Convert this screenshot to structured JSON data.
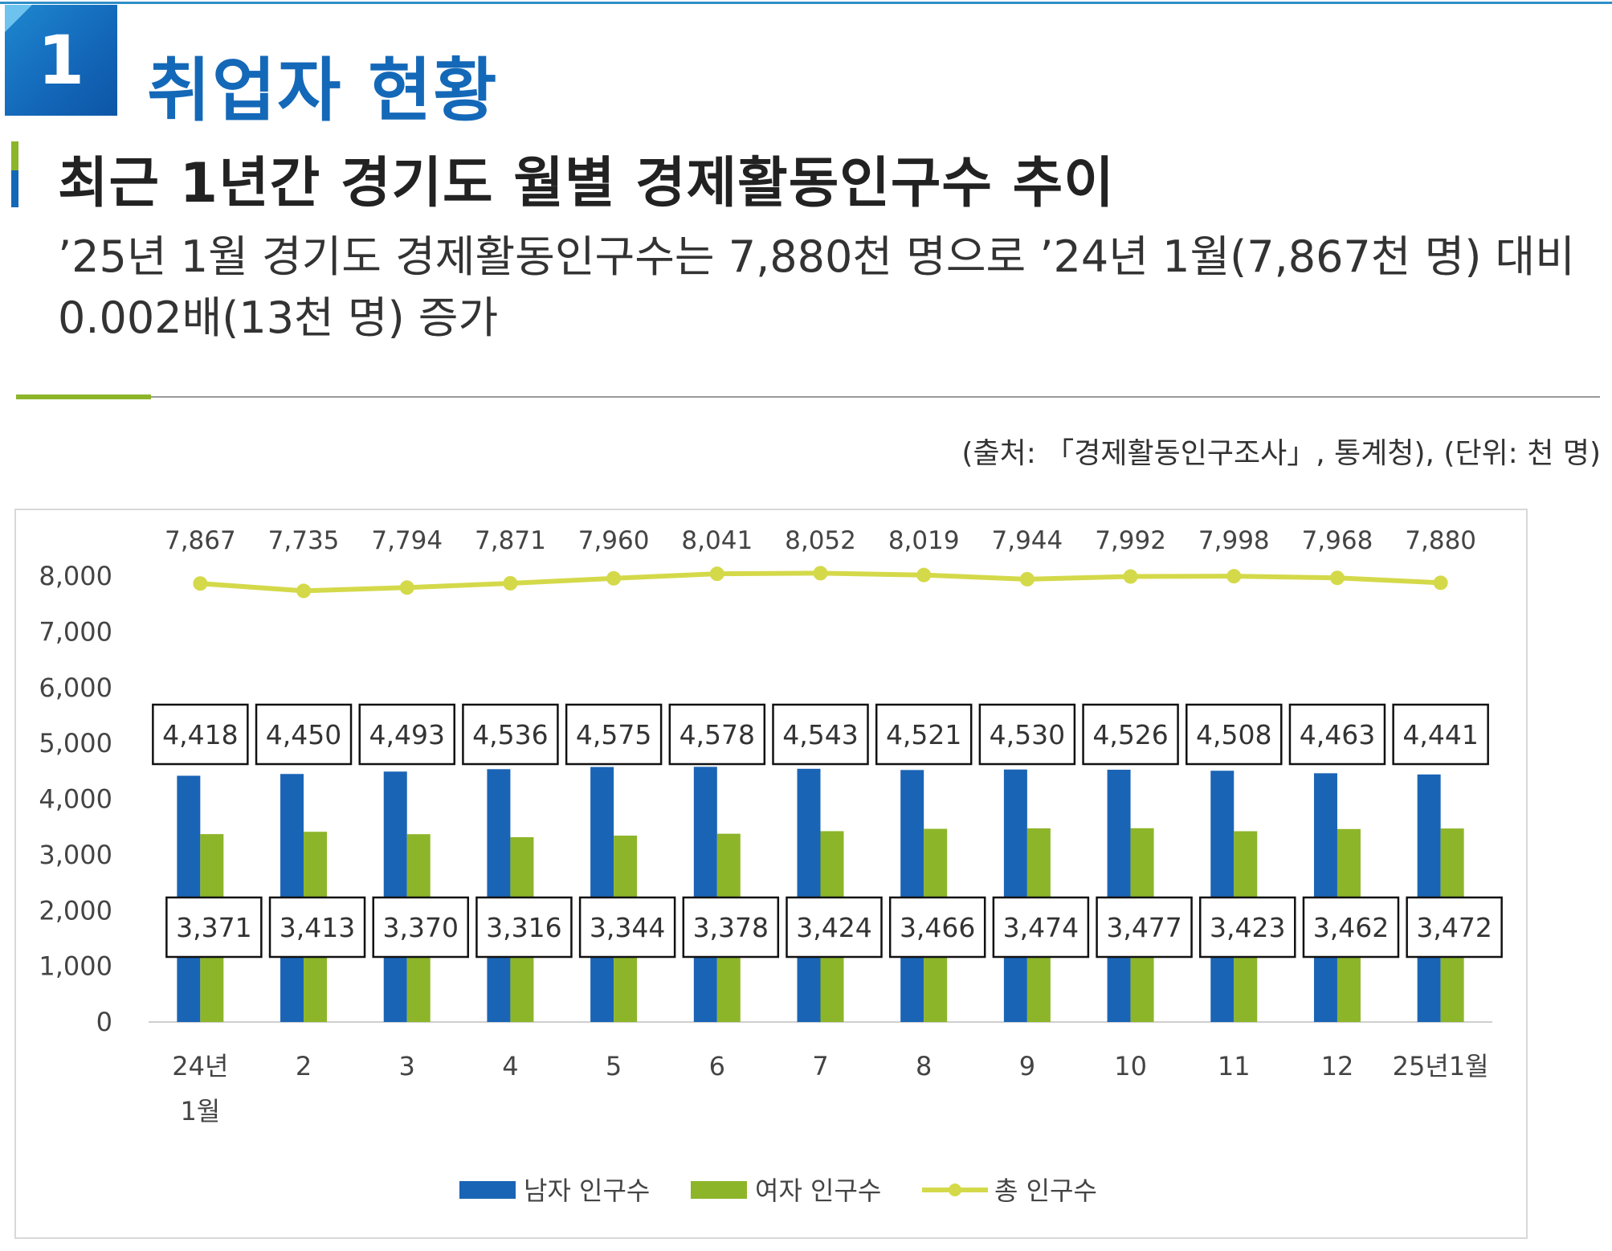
{
  "header": {
    "number": "1",
    "title": "취업자 현황"
  },
  "subheading": {
    "title": "최근 1년간 경기도 월별 경제활동인구수 추이",
    "desc_line1": "’25년 1월 경기도 경제활동인구수는 7,880천 명으로 ’24년 1월(7,867천 명) 대비",
    "desc_line2": "0.002배(13천 명) 증가"
  },
  "source_note": "(출처: 「경제활동인구조사」, 통계청), (단위: 천 명)",
  "colors": {
    "male": "#1a64b6",
    "female": "#8db52a",
    "total": "#d4d94a",
    "accent": "#1468b8"
  },
  "chart_data": {
    "type": "bar",
    "categories": [
      "24년 1월",
      "2",
      "3",
      "4",
      "5",
      "6",
      "7",
      "8",
      "9",
      "10",
      "11",
      "12",
      "25년1월"
    ],
    "y_ticks": [
      "8,000",
      "7,000",
      "6,000",
      "5,000",
      "4,000",
      "3,000",
      "2,000",
      "1,000",
      "0"
    ],
    "ylim": [
      0,
      8000
    ],
    "series": [
      {
        "name": "남자 인구수",
        "type": "bar",
        "values": [
          4418,
          4450,
          4493,
          4536,
          4575,
          4578,
          4543,
          4521,
          4530,
          4526,
          4508,
          4463,
          4441
        ],
        "labels": [
          "4,418",
          "4,450",
          "4,493",
          "4,536",
          "4,575",
          "4,578",
          "4,543",
          "4,521",
          "4,530",
          "4,526",
          "4,508",
          "4,463",
          "4,441"
        ]
      },
      {
        "name": "여자 인구수",
        "type": "bar",
        "values": [
          3371,
          3413,
          3370,
          3316,
          3344,
          3378,
          3424,
          3466,
          3474,
          3477,
          3423,
          3462,
          3472
        ],
        "labels": [
          "3,371",
          "3,413",
          "3,370",
          "3,316",
          "3,344",
          "3,378",
          "3,424",
          "3,466",
          "3,474",
          "3,477",
          "3,423",
          "3,462",
          "3,472"
        ]
      },
      {
        "name": "총 인구수",
        "type": "line",
        "values": [
          7867,
          7735,
          7794,
          7871,
          7960,
          8041,
          8052,
          8019,
          7944,
          7992,
          7998,
          7968,
          7880
        ],
        "labels": [
          "7,867",
          "7,735",
          "7,794",
          "7,871",
          "7,960",
          "8,041",
          "8,052",
          "8,019",
          "7,944",
          "7,992",
          "7,998",
          "7,968",
          "7,880"
        ]
      }
    ],
    "legend_position": "bottom",
    "grid": false
  }
}
